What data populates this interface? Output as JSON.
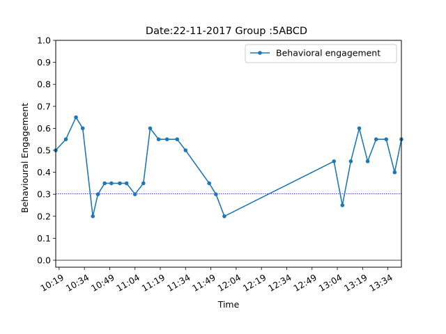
{
  "chart_data": {
    "type": "line",
    "title": "Date:22-11-2017 Group :5ABCD",
    "xlabel": "Time",
    "ylabel": "Behavioural Engagement",
    "ylim": [
      0,
      1.0
    ],
    "xlim": [
      "10:17",
      "13:42"
    ],
    "yticks": [
      "0.0",
      "0.1",
      "0.2",
      "0.3",
      "0.4",
      "0.5",
      "0.6",
      "0.7",
      "0.8",
      "0.9",
      "1.0"
    ],
    "xticks": [
      "10:19",
      "10:34",
      "10:49",
      "11:04",
      "11:19",
      "11:34",
      "11:49",
      "12:04",
      "12:19",
      "12:34",
      "12:49",
      "13:04",
      "13:19",
      "13:34"
    ],
    "grid": false,
    "legend_position": "upper right",
    "series": [
      {
        "name": "Behavioral engagement",
        "color": "#1f77b4",
        "marker": "circle",
        "x": [
          "10:17",
          "10:23",
          "10:29",
          "10:33",
          "10:39",
          "10:42",
          "10:46",
          "10:50",
          "10:55",
          "10:59",
          "11:04",
          "11:09",
          "11:13",
          "11:18",
          "11:23",
          "11:29",
          "11:34",
          "11:48",
          "11:52",
          "11:57",
          "13:02",
          "13:07",
          "13:12",
          "13:17",
          "13:22",
          "13:27",
          "13:33",
          "13:38",
          "13:42"
        ],
        "values": [
          0.5,
          0.55,
          0.65,
          0.6,
          0.2,
          0.3,
          0.35,
          0.35,
          0.35,
          0.35,
          0.3,
          0.35,
          0.6,
          0.55,
          0.55,
          0.55,
          0.5,
          0.35,
          0.3,
          0.2,
          0.45,
          0.25,
          0.45,
          0.6,
          0.45,
          0.55,
          0.55,
          0.4,
          0.55
        ]
      }
    ],
    "reference_line": {
      "y": 0.3025,
      "color": "#0000ff",
      "style": "dotted"
    },
    "zero_line": {
      "y": 0.0,
      "color": "#000000"
    }
  }
}
